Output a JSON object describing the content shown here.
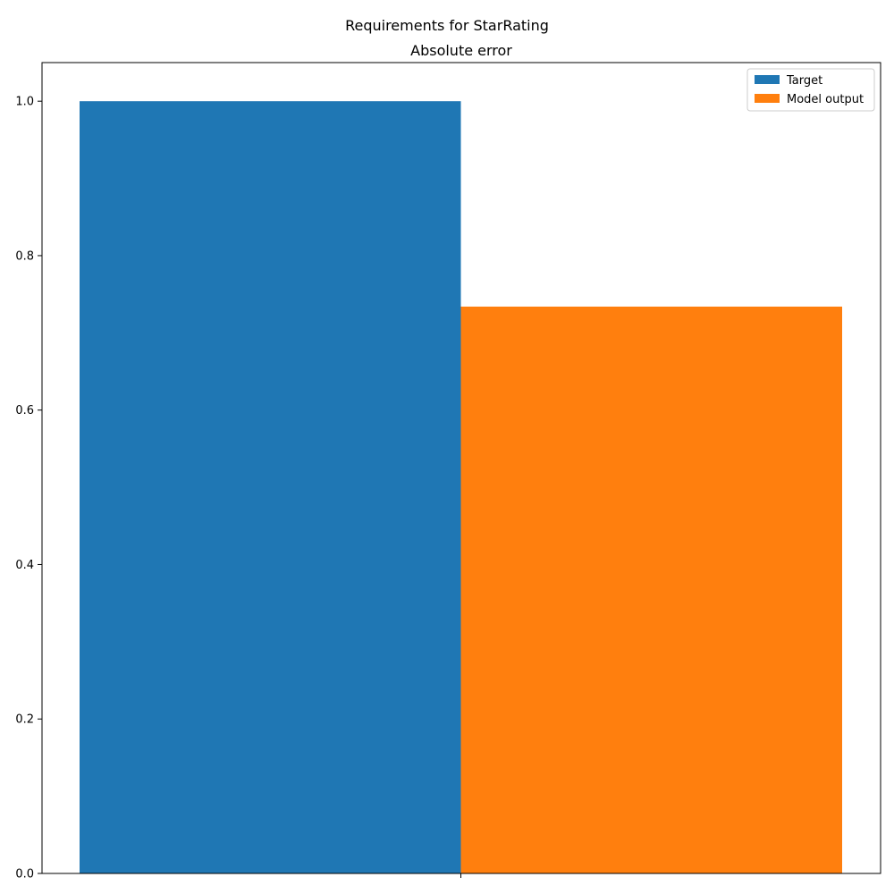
{
  "chart_data": {
    "type": "bar",
    "suptitle": "Requirements for StarRating",
    "title": "Absolute error",
    "xlabel": "",
    "ylabel": "",
    "categories": [
      ""
    ],
    "series": [
      {
        "name": "Target",
        "values": [
          1.0
        ],
        "color": "#1f77b4"
      },
      {
        "name": "Model output",
        "values": [
          0.734
        ],
        "color": "#ff7f0e"
      }
    ],
    "ylim": [
      0,
      1.05
    ],
    "yticks": [
      0.0,
      0.2,
      0.4,
      0.6,
      0.8,
      1.0
    ],
    "ytick_labels": [
      "0.0",
      "0.2",
      "0.4",
      "0.6",
      "0.8",
      "1.0"
    ],
    "grid": false,
    "legend_position": "top-right"
  }
}
